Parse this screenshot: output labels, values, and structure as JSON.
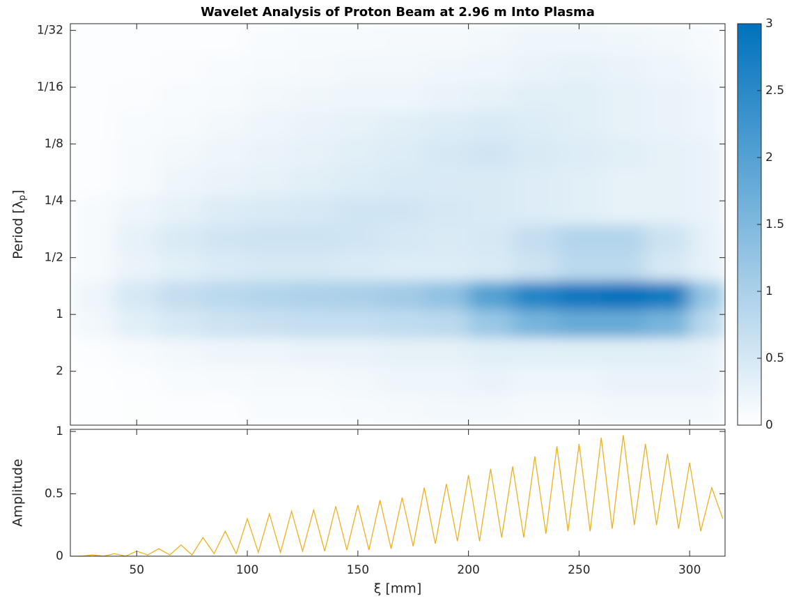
{
  "chart_data": [
    {
      "type": "heatmap",
      "title": "Wavelet Analysis of Proton Beam at 2.96 m Into Plasma",
      "ylabel": [
        "Period [λ",
        "p",
        "]"
      ],
      "xlim": [
        20,
        316
      ],
      "xticks": [
        50,
        100,
        150,
        200,
        250,
        300
      ],
      "ylim": [
        0.0288,
        3.86
      ],
      "ylog": true,
      "yreverse": true,
      "yticks": [
        {
          "value": 0.03125,
          "label": "1/32"
        },
        {
          "value": 0.0625,
          "label": "1/16"
        },
        {
          "value": 0.125,
          "label": "1/8"
        },
        {
          "value": 0.25,
          "label": "1/4"
        },
        {
          "value": 0.5,
          "label": "1/2"
        },
        1,
        2
      ],
      "colormap": [
        "#ffffff",
        "#0072bd"
      ],
      "clim": [
        0,
        3
      ],
      "cticks": [
        0,
        0.5,
        1,
        1.5,
        2,
        2.5,
        3
      ],
      "x_edges": [
        20,
        40,
        60,
        80,
        100,
        120,
        140,
        160,
        180,
        200,
        220,
        240,
        260,
        280,
        300,
        316
      ],
      "period_edges": [
        0.0288,
        0.042,
        0.059,
        0.084,
        0.118,
        0.167,
        0.236,
        0.334,
        0.472,
        0.667,
        0.944,
        1.335,
        1.89,
        2.67,
        3.86
      ],
      "z": [
        [
          0.05,
          0.05,
          0.05,
          0.05,
          0.08,
          0.1,
          0.1,
          0.12,
          0.12,
          0.15,
          0.2,
          0.2,
          0.18,
          0.15,
          0.1
        ],
        [
          0.05,
          0.05,
          0.06,
          0.08,
          0.1,
          0.12,
          0.15,
          0.15,
          0.18,
          0.2,
          0.25,
          0.3,
          0.25,
          0.2,
          0.15
        ],
        [
          0.05,
          0.06,
          0.08,
          0.1,
          0.15,
          0.18,
          0.2,
          0.2,
          0.25,
          0.3,
          0.35,
          0.35,
          0.3,
          0.25,
          0.2
        ],
        [
          0.05,
          0.08,
          0.1,
          0.15,
          0.2,
          0.25,
          0.3,
          0.35,
          0.4,
          0.45,
          0.4,
          0.35,
          0.3,
          0.25,
          0.2
        ],
        [
          0.05,
          0.1,
          0.15,
          0.2,
          0.25,
          0.3,
          0.35,
          0.4,
          0.5,
          0.55,
          0.45,
          0.4,
          0.35,
          0.3,
          0.25
        ],
        [
          0.05,
          0.1,
          0.2,
          0.25,
          0.3,
          0.35,
          0.4,
          0.45,
          0.45,
          0.45,
          0.4,
          0.35,
          0.3,
          0.3,
          0.25
        ],
        [
          0.1,
          0.2,
          0.3,
          0.4,
          0.45,
          0.5,
          0.55,
          0.55,
          0.5,
          0.45,
          0.4,
          0.35,
          0.3,
          0.3,
          0.25
        ],
        [
          0.1,
          0.3,
          0.45,
          0.55,
          0.6,
          0.6,
          0.55,
          0.5,
          0.45,
          0.5,
          0.7,
          0.9,
          0.9,
          0.6,
          0.3
        ],
        [
          0.1,
          0.25,
          0.35,
          0.45,
          0.5,
          0.5,
          0.45,
          0.4,
          0.4,
          0.45,
          0.6,
          0.8,
          0.8,
          0.5,
          0.3
        ],
        [
          0.2,
          0.5,
          0.7,
          0.8,
          0.9,
          0.95,
          1.0,
          1.1,
          1.3,
          2.0,
          2.6,
          2.9,
          3.0,
          2.8,
          1.2
        ],
        [
          0.15,
          0.35,
          0.5,
          0.6,
          0.65,
          0.7,
          0.7,
          0.75,
          0.8,
          1.2,
          1.6,
          1.8,
          1.8,
          1.6,
          0.8
        ],
        [
          0.05,
          0.1,
          0.15,
          0.2,
          0.2,
          0.25,
          0.25,
          0.3,
          0.3,
          0.35,
          0.35,
          0.35,
          0.35,
          0.35,
          0.3
        ],
        [
          0.02,
          0.05,
          0.08,
          0.1,
          0.12,
          0.12,
          0.15,
          0.2,
          0.2,
          0.25,
          0.2,
          0.2,
          0.25,
          0.25,
          0.25
        ],
        [
          0.02,
          0.03,
          0.05,
          0.05,
          0.08,
          0.08,
          0.1,
          0.12,
          0.15,
          0.15,
          0.12,
          0.12,
          0.15,
          0.15,
          0.15
        ]
      ]
    },
    {
      "type": "line",
      "xlabel": "ξ [mm]",
      "ylabel": "Amplitude",
      "xlim": [
        20,
        316
      ],
      "xticks": [
        50,
        100,
        150,
        200,
        250,
        300
      ],
      "ylim": [
        0,
        1.017
      ],
      "yticks": [
        0,
        0.5,
        1
      ],
      "x": [
        20,
        25,
        30,
        35,
        40,
        45,
        50,
        55,
        60,
        65,
        70,
        75,
        80,
        85,
        90,
        95,
        100,
        105,
        110,
        115,
        120,
        125,
        130,
        135,
        140,
        145,
        150,
        155,
        160,
        165,
        170,
        175,
        180,
        185,
        190,
        195,
        200,
        205,
        210,
        215,
        220,
        225,
        230,
        235,
        240,
        245,
        250,
        255,
        260,
        265,
        270,
        275,
        280,
        285,
        290,
        295,
        300,
        305,
        310,
        315
      ],
      "series": [
        {
          "color": "#edb120",
          "values": [
            0.0,
            0.0,
            0.01,
            0.0,
            0.02,
            0.0,
            0.04,
            0.01,
            0.06,
            0.01,
            0.09,
            0.01,
            0.15,
            0.02,
            0.2,
            0.02,
            0.3,
            0.03,
            0.34,
            0.03,
            0.36,
            0.04,
            0.37,
            0.04,
            0.4,
            0.05,
            0.41,
            0.05,
            0.45,
            0.06,
            0.47,
            0.08,
            0.55,
            0.1,
            0.58,
            0.12,
            0.65,
            0.12,
            0.7,
            0.15,
            0.72,
            0.15,
            0.8,
            0.18,
            0.88,
            0.2,
            0.9,
            0.2,
            0.95,
            0.22,
            0.97,
            0.25,
            0.9,
            0.25,
            0.82,
            0.22,
            0.75,
            0.2,
            0.55,
            0.3
          ]
        }
      ]
    }
  ]
}
